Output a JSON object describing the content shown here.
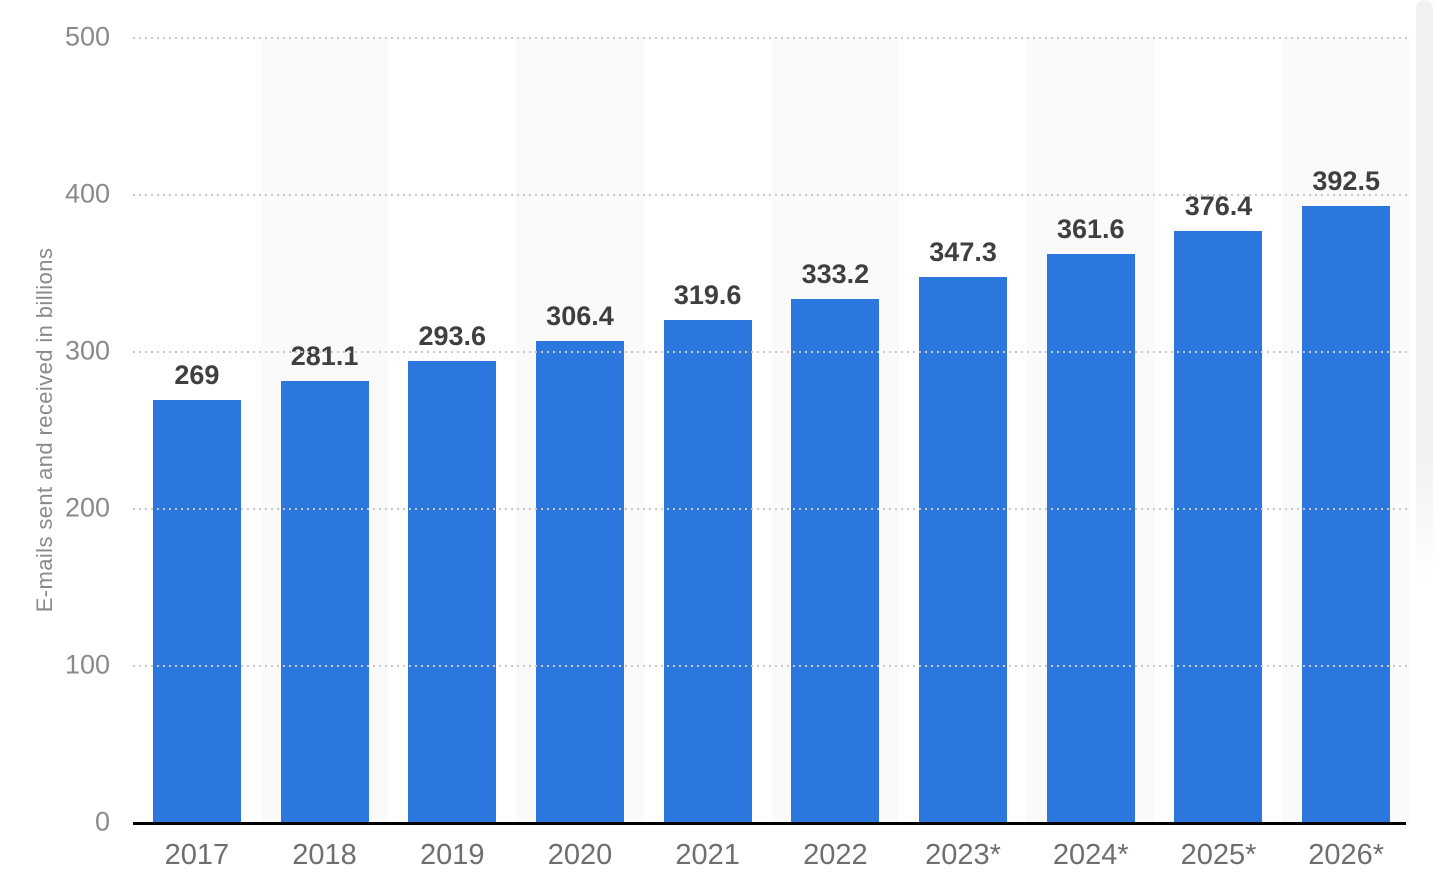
{
  "chart_data": {
    "type": "bar",
    "title": "",
    "categories": [
      "2017",
      "2018",
      "2019",
      "2020",
      "2021",
      "2022",
      "2023*",
      "2024*",
      "2025*",
      "2026*"
    ],
    "values": [
      269,
      281.1,
      293.6,
      306.4,
      319.6,
      333.2,
      347.3,
      361.6,
      376.4,
      392.5
    ],
    "value_labels": [
      "269",
      "281.1",
      "293.6",
      "306.4",
      "319.6",
      "333.2",
      "347.3",
      "361.6",
      "376.4",
      "392.5"
    ],
    "xlabel": "",
    "ylabel": "E-mails sent and received in billions",
    "ylim": [
      0,
      500
    ],
    "yticks": [
      0,
      100,
      200,
      300,
      400,
      500
    ],
    "grid": "horizontal-dotted",
    "legend": "none",
    "plot_background": "alternating-column-stripes"
  },
  "colors": {
    "bar": "#2C77DE",
    "value_label": "#3f3f3f",
    "tick_label": "#8a8a8a",
    "x_label": "#6e6e6e",
    "axis_line": "#000000",
    "gridline": "#c8c8c8",
    "stripe": "#fafafa",
    "background": "#ffffff"
  }
}
